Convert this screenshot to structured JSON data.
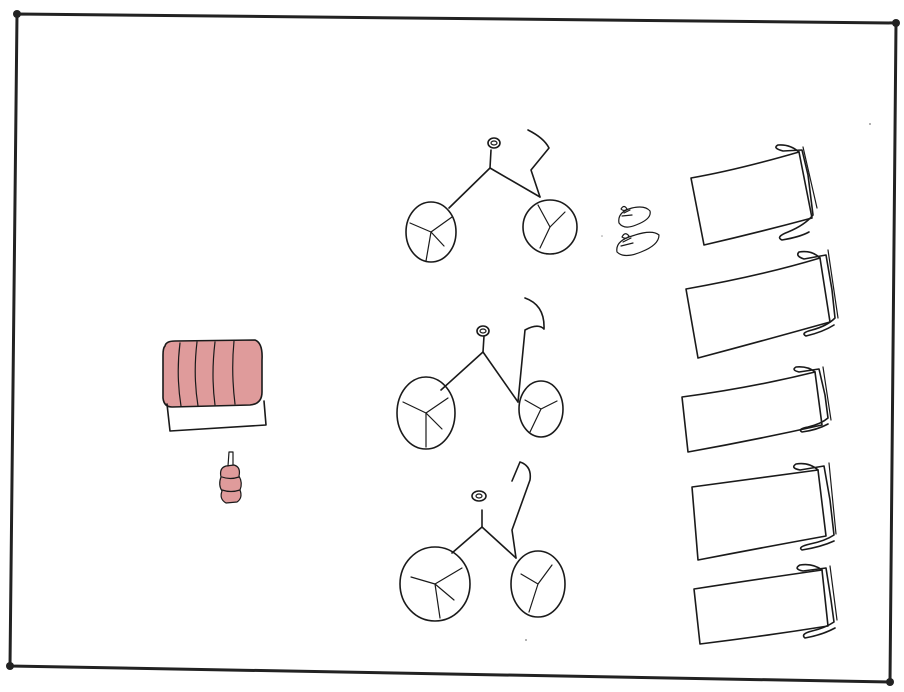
{
  "scene": {
    "colors": {
      "paper": "#ffffff",
      "ink": "#1a1a1a",
      "red_pencil": "#d98a8a"
    },
    "objects": [
      {
        "kind": "bench-cushion",
        "count": 1,
        "shaded": "red"
      },
      {
        "kind": "water-bottle",
        "count": 1,
        "shaded": "red"
      },
      {
        "kind": "bicycle",
        "count": 3
      },
      {
        "kind": "shoes-pair",
        "count": 1
      },
      {
        "kind": "treadmill",
        "count": 5
      }
    ]
  }
}
